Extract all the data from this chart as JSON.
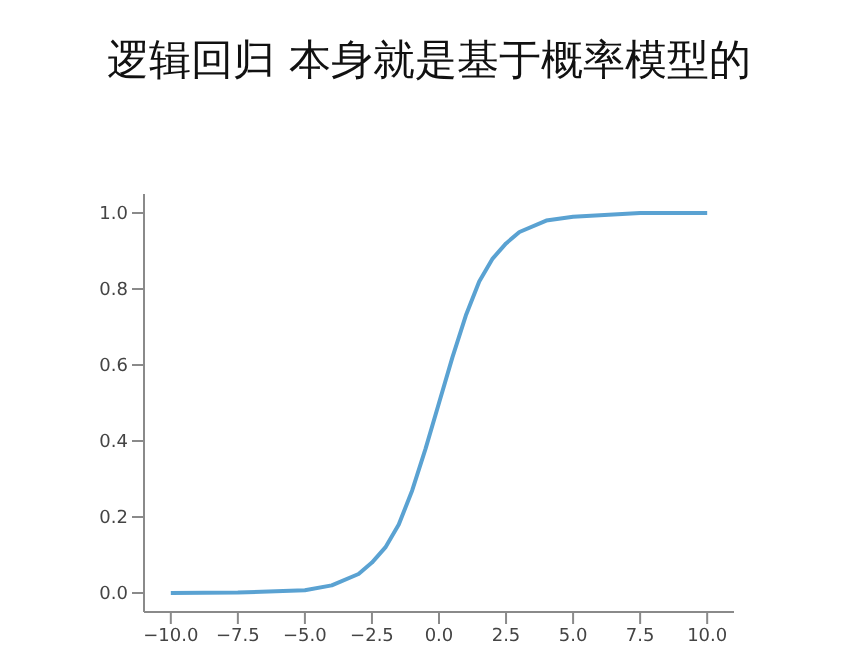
{
  "chart_data": {
    "type": "line",
    "title": "逻辑回归 本身就是基于概率模型的",
    "x": [
      -10,
      -7.5,
      -5,
      -4,
      -3,
      -2.5,
      -2,
      -1.5,
      -1,
      -0.5,
      0,
      0.5,
      1,
      1.5,
      2,
      2.5,
      3,
      4,
      5,
      7.5,
      10
    ],
    "series": [
      {
        "color": "#5aa2d2",
        "values": [
          0,
          0.001,
          0.007,
          0.02,
          0.05,
          0.08,
          0.12,
          0.18,
          0.27,
          0.38,
          0.5,
          0.62,
          0.73,
          0.82,
          0.88,
          0.92,
          0.95,
          0.98,
          0.99,
          1,
          1
        ]
      }
    ],
    "xlim": [
      -11,
      11
    ],
    "ylim": [
      -0.05,
      1.05
    ],
    "xticks": [
      {
        "value": -10,
        "label": "−10.0"
      },
      {
        "value": -7.5,
        "label": "−7.5"
      },
      {
        "value": -5,
        "label": "−5.0"
      },
      {
        "value": -2.5,
        "label": "−2.5"
      },
      {
        "value": 0,
        "label": "0.0"
      },
      {
        "value": 2.5,
        "label": "2.5"
      },
      {
        "value": 5,
        "label": "5.0"
      },
      {
        "value": 7.5,
        "label": "7.5"
      },
      {
        "value": 10,
        "label": "10.0"
      }
    ],
    "yticks": [
      {
        "value": 0,
        "label": "0.0"
      },
      {
        "value": 0.2,
        "label": "0.2"
      },
      {
        "value": 0.4,
        "label": "0.4"
      },
      {
        "value": 0.6,
        "label": "0.6"
      },
      {
        "value": 0.8,
        "label": "0.8"
      },
      {
        "value": 1,
        "label": "1.0"
      }
    ],
    "grid": false,
    "legend": false,
    "marker": "none",
    "line_style": "solid"
  }
}
